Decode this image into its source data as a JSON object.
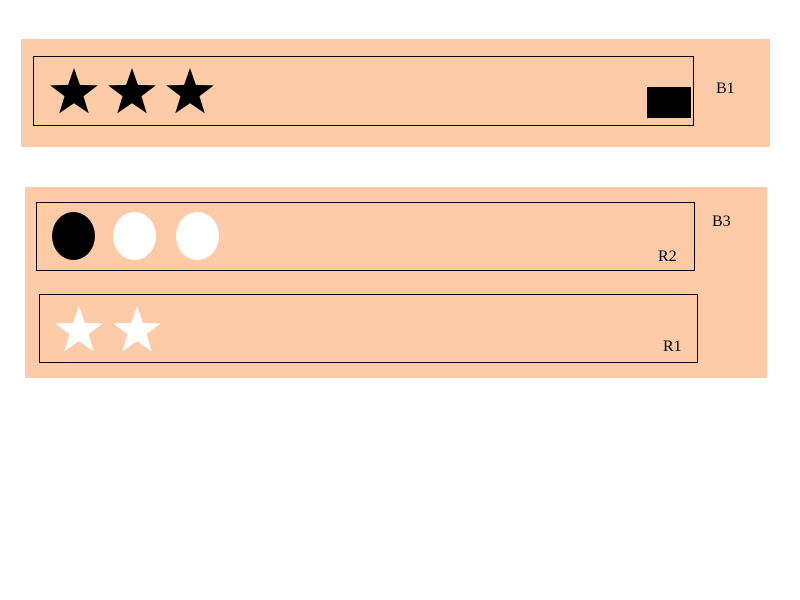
{
  "colors": {
    "board_fill": "#FDCBA8",
    "page_background": "#FFFFFF",
    "outline": "#000000",
    "dark": "#000000",
    "light": "#FFFFFF"
  },
  "boards": [
    {
      "label": "B1",
      "rows": [
        {
          "label": "",
          "shapes": [
            {
              "icon": "star-icon",
              "fill": "#000000"
            },
            {
              "icon": "star-icon",
              "fill": "#000000"
            },
            {
              "icon": "star-icon",
              "fill": "#000000"
            },
            {
              "icon": "square-icon",
              "fill": "#000000"
            }
          ]
        }
      ]
    },
    {
      "label": "B3",
      "rows": [
        {
          "label": "R2",
          "shapes": [
            {
              "icon": "circle-icon",
              "fill": "#000000"
            },
            {
              "icon": "circle-icon",
              "fill": "#FFFFFF"
            },
            {
              "icon": "circle-icon",
              "fill": "#FFFFFF"
            }
          ]
        },
        {
          "label": "R1",
          "shapes": [
            {
              "icon": "star-icon",
              "fill": "#FFFFFF"
            },
            {
              "icon": "star-icon",
              "fill": "#FFFFFF"
            }
          ]
        }
      ]
    }
  ]
}
